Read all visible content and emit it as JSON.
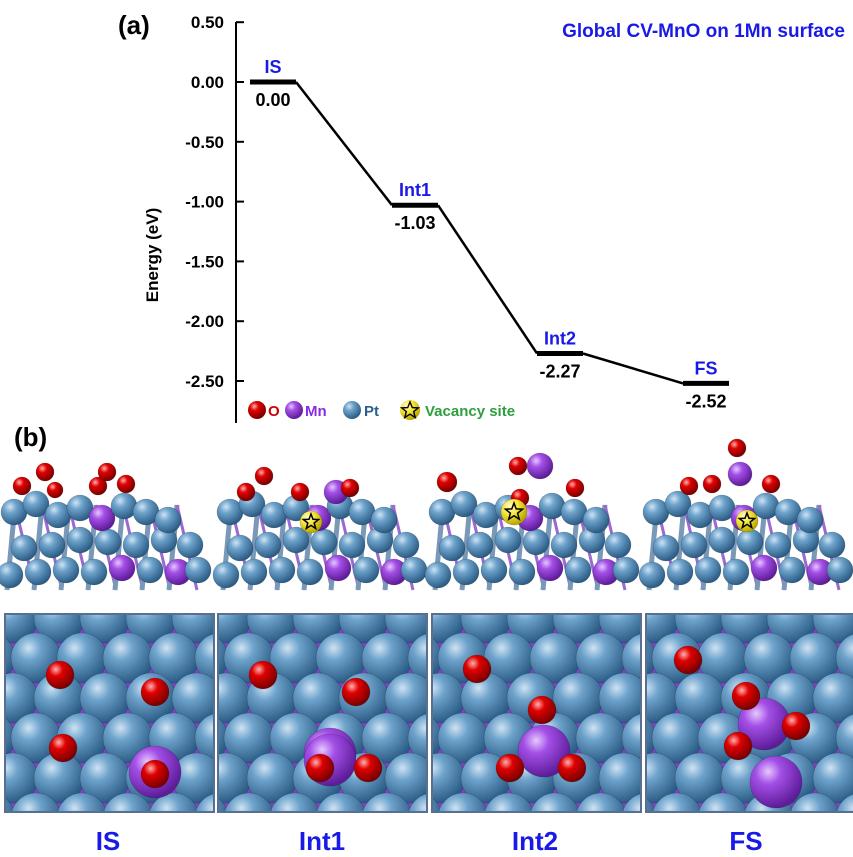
{
  "panel_a": {
    "label": "(a)",
    "title": "Global CV-MnO on 1Mn surface",
    "ylabel": "Energy (eV)",
    "legend": [
      {
        "symbol": "O",
        "text": "O",
        "color": "#cc0000",
        "text_color": "#cc0000"
      },
      {
        "symbol": "Mn",
        "text": "Mn",
        "color": "#9b3dde",
        "text_color": "#8a2be2"
      },
      {
        "symbol": "Pt",
        "text": "Pt",
        "color": "#3f7fb0",
        "text_color": "#2a5f8f"
      },
      {
        "symbol": "star",
        "text": "Vacancy site",
        "color": "#f2e233",
        "text_color": "#2e9e3e"
      }
    ]
  },
  "panel_b": {
    "label": "(b)",
    "captions": [
      "IS",
      "Int1",
      "Int2",
      "FS"
    ]
  },
  "colors": {
    "state_label": "#1a1ae6",
    "caption": "#1a1ae6",
    "title": "#1a1ae6",
    "O": "#d40000",
    "Mn": "#9b3dde",
    "Pt": "#4a86b8",
    "vacancy": "#f5e63a"
  },
  "chart_data": {
    "type": "line",
    "categories": [
      "IS",
      "Int1",
      "Int2",
      "FS"
    ],
    "values": [
      0.0,
      -1.03,
      -2.27,
      -2.52
    ],
    "value_labels": [
      "0.00",
      "-1.03",
      "-2.27",
      "-2.52"
    ],
    "title": "Global CV-MnO on 1Mn surface",
    "xlabel": "",
    "ylabel": "Energy (eV)",
    "ylim": [
      -2.8,
      0.5
    ],
    "yticks": [
      0.5,
      0.0,
      -0.5,
      -1.0,
      -1.5,
      -2.0,
      -2.5
    ],
    "ytick_labels": [
      "0.50",
      "0.00",
      "-0.50",
      "-1.00",
      "-1.50",
      "-2.00",
      "-2.50"
    ],
    "grid": false
  }
}
